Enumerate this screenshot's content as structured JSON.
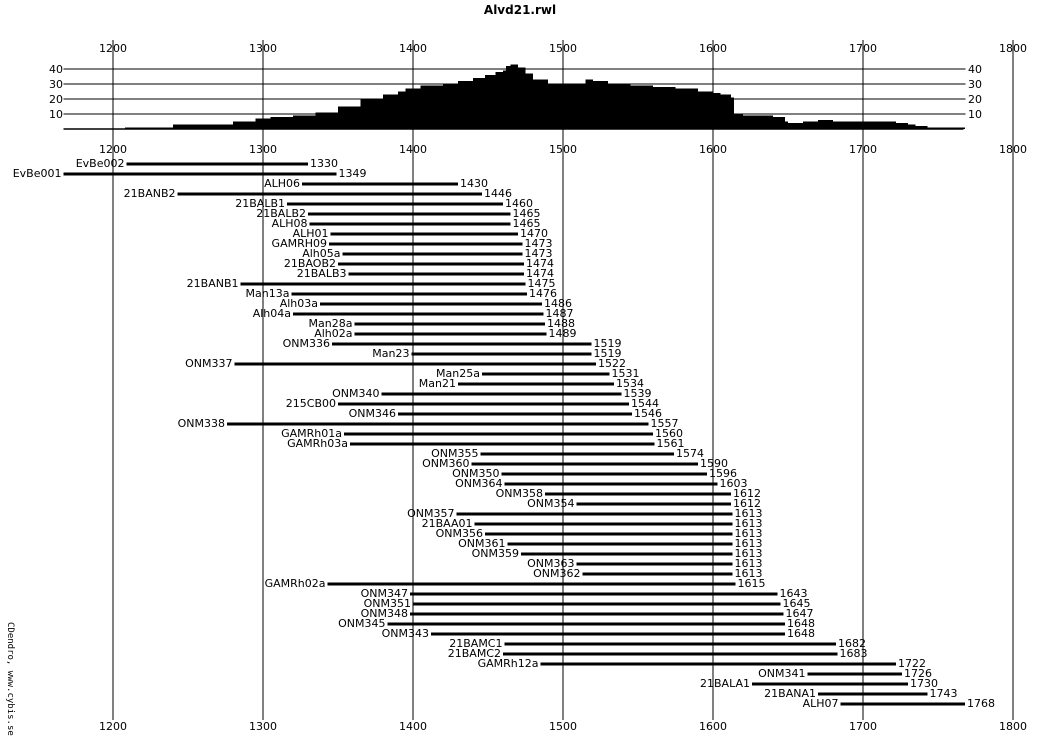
{
  "chart_data": {
    "type": "bar",
    "title": "Alvd21.rwl",
    "credit": "CDendro, www.cybis.se",
    "xlim": [
      1167,
      1800
    ],
    "x_ticks": [
      1200,
      1300,
      1400,
      1500,
      1600,
      1700,
      1800
    ],
    "x_tick_labels": [
      "1200",
      "1300",
      "1400",
      "1500",
      "1600",
      "1700",
      "1800"
    ],
    "grid": true,
    "depth": {
      "ylim": [
        0,
        45
      ],
      "y_ticks": [
        10,
        20,
        30,
        40
      ],
      "y_tick_labels": [
        "10",
        "20",
        "30",
        "40"
      ],
      "years": [
        1167,
        1208,
        1240,
        1280,
        1295,
        1305,
        1320,
        1335,
        1350,
        1365,
        1380,
        1390,
        1395,
        1405,
        1420,
        1430,
        1440,
        1448,
        1455,
        1460,
        1462,
        1465,
        1470,
        1475,
        1480,
        1490,
        1500,
        1515,
        1520,
        1530,
        1545,
        1560,
        1575,
        1590,
        1600,
        1605,
        1612,
        1614,
        1620,
        1640,
        1648,
        1650,
        1660,
        1670,
        1680,
        1690,
        1700,
        1710,
        1722,
        1726,
        1730,
        1735,
        1743,
        1768
      ],
      "values": [
        0,
        1,
        3,
        5,
        7,
        8,
        9,
        11,
        15,
        20,
        23,
        25,
        27,
        29,
        30,
        32,
        34,
        36,
        38,
        39,
        42,
        43,
        41,
        37,
        33,
        30,
        30,
        33,
        32,
        30,
        29,
        28,
        27,
        25,
        24,
        23,
        21,
        10,
        9,
        8,
        5,
        4,
        5,
        6,
        5,
        5,
        5,
        5,
        4,
        4,
        3,
        2,
        1,
        0
      ]
    },
    "series": [
      {
        "name": "EvBe002",
        "start": 1209,
        "end": 1330,
        "end_label": "1330"
      },
      {
        "name": "EvBe001",
        "start": 1167,
        "end": 1349,
        "end_label": "1349"
      },
      {
        "name": "ALH06",
        "start": 1326,
        "end": 1430,
        "end_label": "1430"
      },
      {
        "name": "21BANB2",
        "start": 1243,
        "end": 1446,
        "end_label": "1446"
      },
      {
        "name": "21BALB1",
        "start": 1316,
        "end": 1460,
        "end_label": "1460"
      },
      {
        "name": "21BALB2",
        "start": 1330,
        "end": 1465,
        "end_label": "1465"
      },
      {
        "name": "ALH08",
        "start": 1331,
        "end": 1465,
        "end_label": "1465"
      },
      {
        "name": "ALH01",
        "start": 1345,
        "end": 1470,
        "end_label": "1470"
      },
      {
        "name": "GAMRH09",
        "start": 1344,
        "end": 1473,
        "end_label": "1473"
      },
      {
        "name": "Alh05a",
        "start": 1353,
        "end": 1473,
        "end_label": "1473"
      },
      {
        "name": "21BAOB2",
        "start": 1350,
        "end": 1474,
        "end_label": "1474"
      },
      {
        "name": "21BALB3",
        "start": 1357,
        "end": 1474,
        "end_label": "1474"
      },
      {
        "name": "21BANB1",
        "start": 1285,
        "end": 1475,
        "end_label": "1475"
      },
      {
        "name": "Man13a",
        "start": 1319,
        "end": 1476,
        "end_label": "1476"
      },
      {
        "name": "Alh03a",
        "start": 1338,
        "end": 1486,
        "end_label": "1486"
      },
      {
        "name": "Alh04a",
        "start": 1320,
        "end": 1487,
        "end_label": "1487"
      },
      {
        "name": "Man28a",
        "start": 1361,
        "end": 1488,
        "end_label": "1488"
      },
      {
        "name": "Alh02a",
        "start": 1361,
        "end": 1489,
        "end_label": "1489"
      },
      {
        "name": "ONM336",
        "start": 1346,
        "end": 1519,
        "end_label": "1519"
      },
      {
        "name": "Man23",
        "start": 1399,
        "end": 1519,
        "end_label": "1519"
      },
      {
        "name": "ONM337",
        "start": 1281,
        "end": 1522,
        "end_label": "1522"
      },
      {
        "name": "Man25a",
        "start": 1446,
        "end": 1531,
        "end_label": "1531"
      },
      {
        "name": "Man21",
        "start": 1430,
        "end": 1534,
        "end_label": "1534"
      },
      {
        "name": "ONM340",
        "start": 1379,
        "end": 1539,
        "end_label": "1539"
      },
      {
        "name": "215CB00",
        "start": 1350,
        "end": 1544,
        "end_label": "1544"
      },
      {
        "name": "ONM346",
        "start": 1390,
        "end": 1546,
        "end_label": "1546"
      },
      {
        "name": "ONM338",
        "start": 1276,
        "end": 1557,
        "end_label": "1557"
      },
      {
        "name": "GAMRh01a",
        "start": 1354,
        "end": 1560,
        "end_label": "1560"
      },
      {
        "name": "GAMRh03a",
        "start": 1358,
        "end": 1561,
        "end_label": "1561"
      },
      {
        "name": "ONM355",
        "start": 1445,
        "end": 1574,
        "end_label": "1574"
      },
      {
        "name": "ONM360",
        "start": 1439,
        "end": 1590,
        "end_label": "1590"
      },
      {
        "name": "ONM350",
        "start": 1459,
        "end": 1596,
        "end_label": "1596"
      },
      {
        "name": "ONM364",
        "start": 1461,
        "end": 1603,
        "end_label": "1603"
      },
      {
        "name": "ONM358",
        "start": 1488,
        "end": 1612,
        "end_label": "1612"
      },
      {
        "name": "ONM354",
        "start": 1509,
        "end": 1612,
        "end_label": "1612"
      },
      {
        "name": "ONM357",
        "start": 1429,
        "end": 1613,
        "end_label": "1613"
      },
      {
        "name": "21BAA01",
        "start": 1441,
        "end": 1613,
        "end_label": "1613"
      },
      {
        "name": "ONM356",
        "start": 1448,
        "end": 1613,
        "end_label": "1613"
      },
      {
        "name": "ONM361",
        "start": 1463,
        "end": 1613,
        "end_label": "1613"
      },
      {
        "name": "ONM359",
        "start": 1472,
        "end": 1613,
        "end_label": "1613"
      },
      {
        "name": "ONM363",
        "start": 1509,
        "end": 1613,
        "end_label": "1613"
      },
      {
        "name": "ONM362",
        "start": 1513,
        "end": 1613,
        "end_label": "1613"
      },
      {
        "name": "GAMRh02a",
        "start": 1343,
        "end": 1615,
        "end_label": "1615"
      },
      {
        "name": "ONM347",
        "start": 1398,
        "end": 1643,
        "end_label": "1643"
      },
      {
        "name": "ONM351",
        "start": 1400,
        "end": 1645,
        "end_label": "1645"
      },
      {
        "name": "ONM348",
        "start": 1398,
        "end": 1647,
        "end_label": "1647"
      },
      {
        "name": "ONM345",
        "start": 1383,
        "end": 1648,
        "end_label": "1648"
      },
      {
        "name": "ONM343",
        "start": 1412,
        "end": 1648,
        "end_label": "1648"
      },
      {
        "name": "21BAMC1",
        "start": 1461,
        "end": 1682,
        "end_label": "1682"
      },
      {
        "name": "21BAMC2",
        "start": 1460,
        "end": 1683,
        "end_label": "1683"
      },
      {
        "name": "GAMRh12a",
        "start": 1485,
        "end": 1722,
        "end_label": "1722"
      },
      {
        "name": "ONM341",
        "start": 1663,
        "end": 1726,
        "end_label": "1726"
      },
      {
        "name": "21BALA1",
        "start": 1626,
        "end": 1730,
        "end_label": "1730"
      },
      {
        "name": "21BANA1",
        "start": 1670,
        "end": 1743,
        "end_label": "1743"
      },
      {
        "name": "ALH07",
        "start": 1685,
        "end": 1768,
        "end_label": "1768"
      }
    ]
  }
}
